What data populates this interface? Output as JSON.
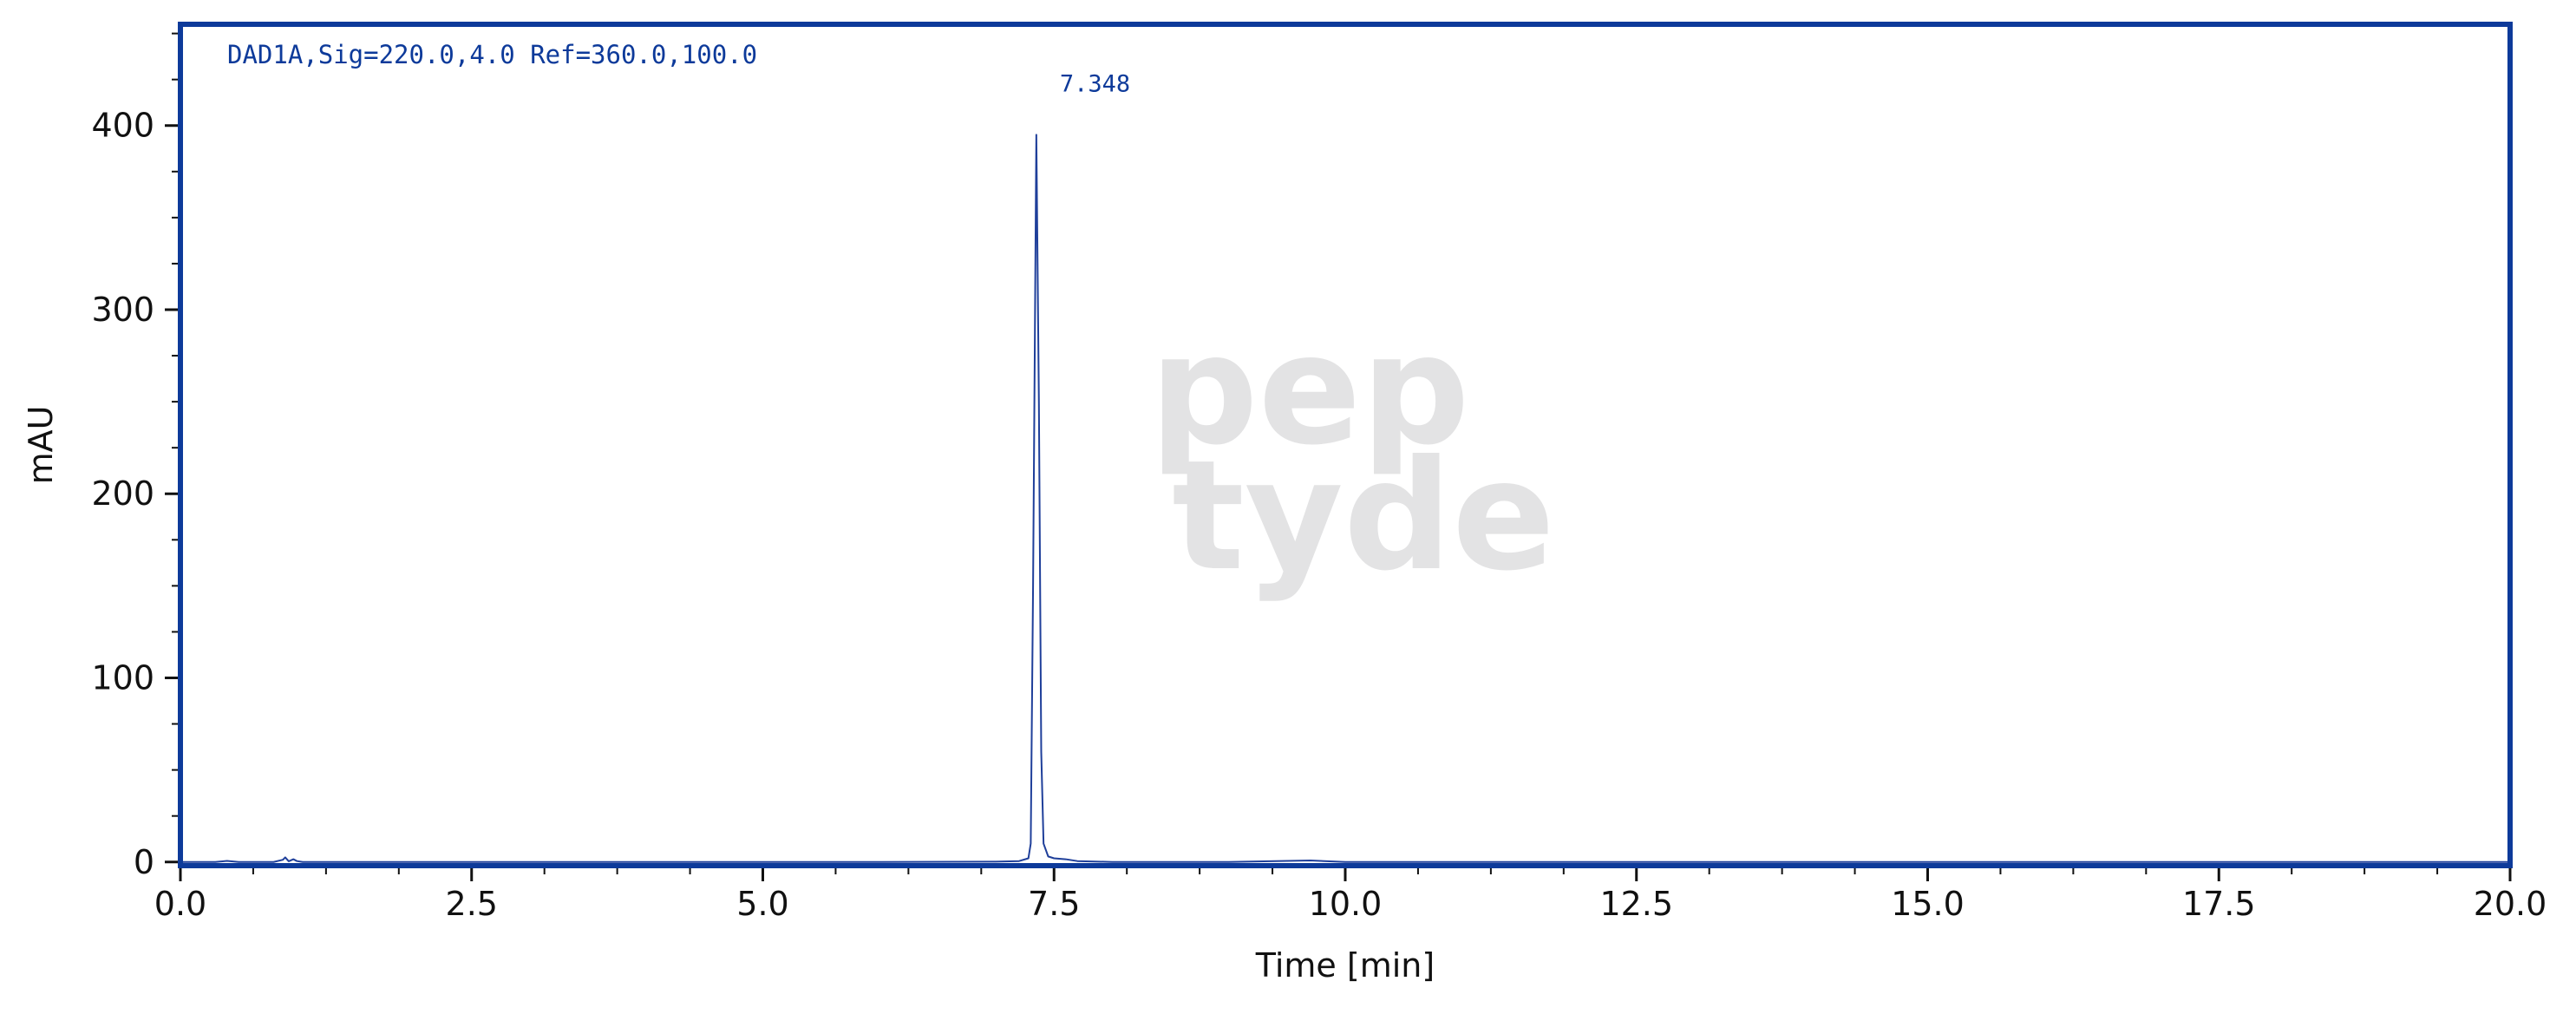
{
  "chart_data": {
    "type": "line",
    "title": "DAD1A,Sig=220.0,4.0 Ref=360.0,100.0",
    "annotation": 7.348,
    "watermark": [
      "pep",
      "tyde"
    ],
    "xlabel": "Time [min]",
    "ylabel": "mAU",
    "color": "#1f3f9a",
    "frame_color": "#0d3a9a",
    "x": [
      0,
      0.3,
      0.4,
      0.5,
      0.8,
      0.88,
      0.9,
      0.93,
      0.97,
      1.0,
      1.05,
      1.2,
      2,
      3,
      4,
      5,
      6,
      7,
      7.2,
      7.28,
      7.3,
      7.32,
      7.348,
      7.37,
      7.39,
      7.41,
      7.45,
      7.5,
      7.6,
      7.7,
      8,
      9,
      9.7,
      10,
      12,
      14,
      16,
      18,
      20
    ],
    "values": [
      0,
      0,
      0.6,
      0,
      0,
      1.2,
      2.5,
      0.4,
      1.5,
      0.5,
      0,
      0,
      0,
      0,
      0,
      0,
      0,
      0.2,
      0.5,
      2,
      10,
      150,
      395,
      250,
      60,
      10,
      3,
      2,
      1.5,
      0.5,
      0,
      0,
      0.8,
      0,
      0,
      0,
      0,
      0,
      0
    ],
    "xlim": [
      0,
      20
    ],
    "ylim": [
      -2,
      455
    ],
    "xticks": [
      {
        "value": 0,
        "label": "0.0"
      },
      2.5,
      {
        "value": 5,
        "label": "5.0"
      },
      7.5,
      {
        "value": 10,
        "label": "10.0"
      },
      12.5,
      {
        "value": 15,
        "label": "15.0"
      },
      17.5,
      {
        "value": 20,
        "label": "20.0"
      }
    ],
    "yticks": [
      0,
      100,
      200,
      300,
      400
    ],
    "xticks_minor": [
      0.625,
      1.25,
      1.875,
      3.125,
      3.75,
      4.375,
      5.625,
      6.25,
      6.875,
      8.125,
      8.75,
      9.375,
      10.625,
      11.25,
      11.875,
      13.125,
      13.75,
      14.375,
      15.625,
      16.25,
      16.875,
      18.125,
      18.75,
      19.375
    ],
    "yticks_minor": [
      25,
      50,
      75,
      125,
      150,
      175,
      225,
      250,
      275,
      325,
      350,
      375,
      425,
      450
    ]
  }
}
